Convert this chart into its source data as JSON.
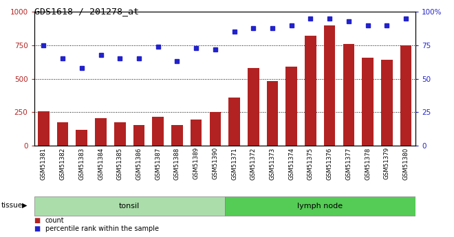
{
  "title": "GDS1618 / 201278_at",
  "categories": [
    "GSM51381",
    "GSM51382",
    "GSM51383",
    "GSM51384",
    "GSM51385",
    "GSM51386",
    "GSM51387",
    "GSM51388",
    "GSM51389",
    "GSM51390",
    "GSM51371",
    "GSM51372",
    "GSM51373",
    "GSM51374",
    "GSM51375",
    "GSM51376",
    "GSM51377",
    "GSM51378",
    "GSM51379",
    "GSM51380"
  ],
  "bar_values": [
    255,
    175,
    120,
    205,
    175,
    155,
    215,
    155,
    195,
    250,
    360,
    580,
    485,
    590,
    820,
    900,
    760,
    660,
    640,
    750
  ],
  "dot_values": [
    75,
    65,
    58,
    68,
    65,
    65,
    74,
    63,
    73,
    72,
    85,
    88,
    88,
    90,
    95,
    95,
    93,
    90,
    90,
    95
  ],
  "bar_color": "#b22222",
  "dot_color": "#2222cc",
  "tonsil_color": "#aaddaa",
  "lymph_color": "#55cc55",
  "tonsil_label": "tonsil",
  "lymph_label": "lymph node",
  "tissue_label": "tissue",
  "ylim_left": [
    0,
    1000
  ],
  "ylim_right": [
    0,
    100
  ],
  "yticks_left": [
    0,
    250,
    500,
    750,
    1000
  ],
  "yticks_right": [
    0,
    25,
    50,
    75,
    100
  ],
  "ytick_right_labels": [
    "0",
    "25",
    "50",
    "75",
    "100%"
  ],
  "legend_count": "count",
  "legend_percentile": "percentile rank within the sample",
  "plot_bg": "#ffffff",
  "xtick_bg": "#cccccc",
  "bar_width": 0.6,
  "n_tonsil": 10,
  "n_lymph": 10
}
